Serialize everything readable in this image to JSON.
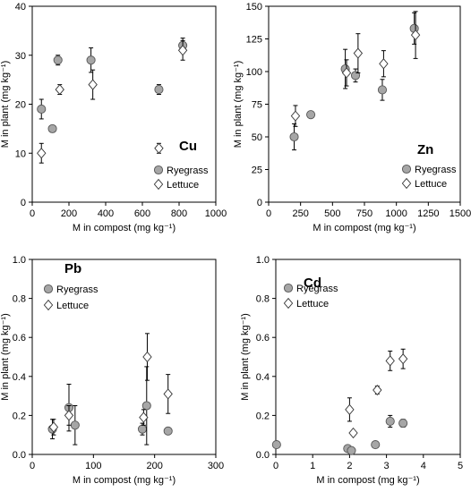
{
  "chart_data": [
    {
      "type": "scatter",
      "title": "Cu",
      "xlabel": "M in compost (mg kg⁻¹)",
      "ylabel": "M in plant (mg kg⁻¹)",
      "xlim": [
        0,
        1000
      ],
      "ylim": [
        0,
        40
      ],
      "xticks": [
        0,
        200,
        400,
        600,
        800,
        1000
      ],
      "yticks": [
        0,
        10,
        20,
        30,
        40
      ],
      "xtick_labels": [
        "0",
        "200",
        "400",
        "600",
        "800",
        "1000"
      ],
      "ytick_labels": [
        "0",
        "10",
        "20",
        "30",
        "40"
      ],
      "grid": false,
      "legend": "bottom-right",
      "series": [
        {
          "name": "Ryegrass",
          "marker": "circle",
          "color": "#a6a6a6",
          "x": [
            50,
            110,
            140,
            320,
            690,
            820
          ],
          "y": [
            19,
            15,
            29,
            29,
            23,
            32
          ],
          "err": [
            2,
            0.5,
            1,
            2.5,
            1,
            1.5
          ]
        },
        {
          "name": "Lettuce",
          "marker": "diamond",
          "color": "#ffffff",
          "x": [
            50,
            150,
            330,
            690,
            820
          ],
          "y": [
            10,
            23,
            24,
            11,
            31
          ],
          "err": [
            2,
            1,
            3,
            1,
            2
          ]
        }
      ]
    },
    {
      "type": "scatter",
      "title": "Zn",
      "xlabel": "M in compost (mg kg⁻¹)",
      "ylabel": "M in plant (mg kg⁻¹)",
      "xlim": [
        0,
        1500
      ],
      "ylim": [
        0,
        150
      ],
      "xticks": [
        0,
        250,
        500,
        750,
        1000,
        1250,
        1500
      ],
      "yticks": [
        0,
        25,
        50,
        75,
        100,
        125,
        150
      ],
      "xtick_labels": [
        "0",
        "250",
        "500",
        "750",
        "1000",
        "1250",
        "1500"
      ],
      "ytick_labels": [
        "0",
        "25",
        "50",
        "75",
        "100",
        "125",
        "150"
      ],
      "grid": false,
      "legend": "bottom-right",
      "series": [
        {
          "name": "Ryegrass",
          "marker": "circle",
          "color": "#a6a6a6",
          "x": [
            200,
            330,
            600,
            680,
            890,
            1140
          ],
          "y": [
            50,
            67,
            102,
            97,
            86,
            133
          ],
          "err": [
            10,
            0,
            15,
            5,
            8,
            12
          ]
        },
        {
          "name": "Lettuce",
          "marker": "diamond",
          "color": "#ffffff",
          "x": [
            210,
            610,
            700,
            900,
            1150
          ],
          "y": [
            66,
            99,
            114,
            106,
            128
          ],
          "err": [
            8,
            10,
            15,
            10,
            18
          ]
        }
      ]
    },
    {
      "type": "scatter",
      "title": "Pb",
      "xlabel": "M in compost (mg kg⁻¹)",
      "ylabel": "M in plant (mg kg⁻¹)",
      "xlim": [
        0,
        300
      ],
      "ylim": [
        0,
        1.0
      ],
      "xticks": [
        0,
        100,
        200,
        300
      ],
      "yticks": [
        0,
        0.2,
        0.4,
        0.6,
        0.8,
        1.0
      ],
      "xtick_labels": [
        "0",
        "100",
        "200",
        "300"
      ],
      "ytick_labels": [
        "0.0",
        "0.2",
        "0.4",
        "0.6",
        "0.8",
        "1.0"
      ],
      "grid": false,
      "legend": "top-left",
      "series": [
        {
          "name": "Ryegrass",
          "marker": "circle",
          "color": "#a6a6a6",
          "x": [
            33,
            60,
            70,
            180,
            187,
            222
          ],
          "y": [
            0.13,
            0.24,
            0.15,
            0.13,
            0.25,
            0.12
          ],
          "err": [
            0.05,
            0.12,
            0.1,
            0.03,
            0.2,
            0
          ]
        },
        {
          "name": "Lettuce",
          "marker": "diamond",
          "color": "#ffffff",
          "x": [
            35,
            60,
            182,
            188,
            222
          ],
          "y": [
            0.14,
            0.2,
            0.19,
            0.5,
            0.31
          ],
          "err": [
            0.04,
            0.05,
            0.04,
            0.12,
            0.1
          ]
        }
      ]
    },
    {
      "type": "scatter",
      "title": "Cd",
      "xlabel": "M in compost (mg kg⁻¹)",
      "ylabel": "M in plant (mg kg⁻¹)",
      "xlim": [
        0,
        5
      ],
      "ylim": [
        0,
        1.0
      ],
      "xticks": [
        0,
        1,
        2,
        3,
        4,
        5
      ],
      "yticks": [
        0,
        0.2,
        0.4,
        0.6,
        0.8,
        1.0
      ],
      "xtick_labels": [
        "0",
        "1",
        "2",
        "3",
        "4",
        "5"
      ],
      "ytick_labels": [
        "0.0",
        "0.2",
        "0.4",
        "0.6",
        "0.8",
        "1.0"
      ],
      "grid": false,
      "legend": "top-left",
      "series": [
        {
          "name": "Ryegrass",
          "marker": "circle",
          "color": "#a6a6a6",
          "x": [
            0.02,
            1.95,
            2.05,
            2.7,
            3.1,
            3.45
          ],
          "y": [
            0.05,
            0.03,
            0.02,
            0.05,
            0.17,
            0.16
          ],
          "err": [
            0,
            0,
            0,
            0,
            0.03,
            0.02
          ]
        },
        {
          "name": "Lettuce",
          "marker": "diamond",
          "color": "#ffffff",
          "x": [
            2.0,
            2.1,
            2.75,
            3.1,
            3.45
          ],
          "y": [
            0.23,
            0.11,
            0.33,
            0.48,
            0.49
          ],
          "err": [
            0.06,
            0,
            0.02,
            0.05,
            0.05
          ]
        }
      ]
    }
  ]
}
